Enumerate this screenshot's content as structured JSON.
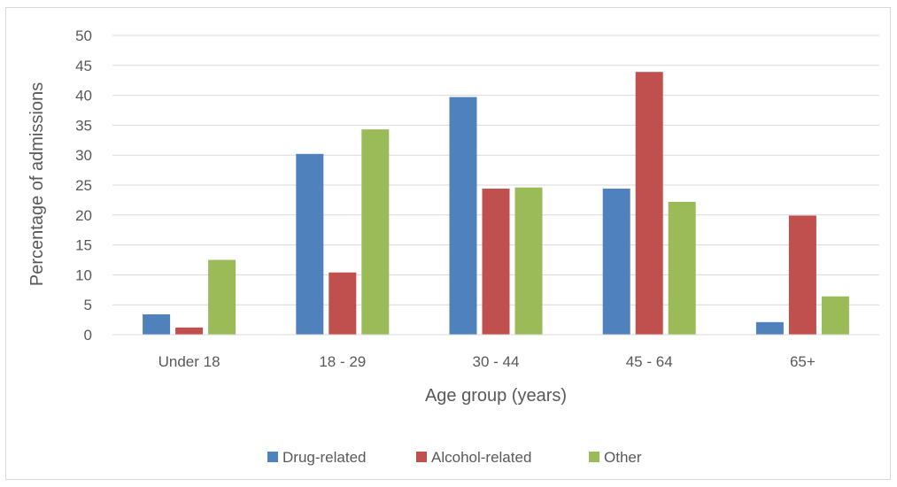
{
  "chart_data": {
    "type": "bar",
    "title": "",
    "xlabel": "Age group (years)",
    "ylabel": "Percentage of admissions",
    "categories": [
      "Under 18",
      "18 - 29",
      "30 - 44",
      "45 - 64",
      "65+"
    ],
    "series": [
      {
        "name": "Drug-related",
        "color": "#4f81bd",
        "values": [
          3.4,
          30.2,
          39.7,
          24.4,
          2.1
        ]
      },
      {
        "name": "Alcohol-related",
        "color": "#c0504d",
        "values": [
          1.2,
          10.4,
          24.4,
          43.9,
          19.9
        ]
      },
      {
        "name": "Other",
        "color": "#9bbb59",
        "values": [
          12.5,
          34.3,
          24.6,
          22.2,
          6.4
        ]
      }
    ],
    "ylim": [
      0,
      50
    ],
    "yticks": [
      0,
      5,
      10,
      15,
      20,
      25,
      30,
      35,
      40,
      45,
      50
    ],
    "grid": true,
    "legend_position": "bottom"
  }
}
